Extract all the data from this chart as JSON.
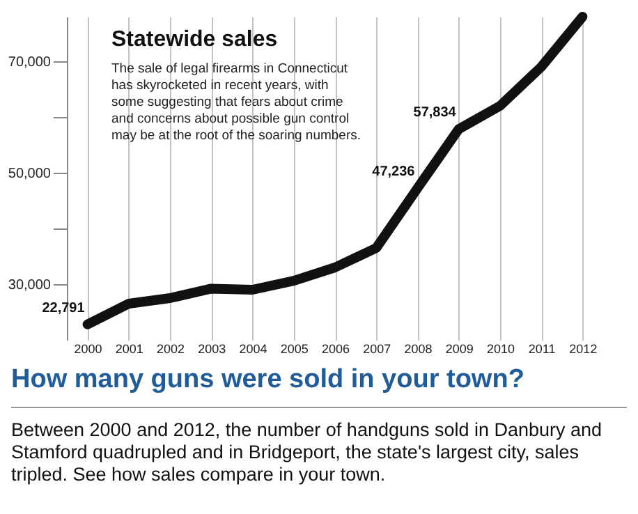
{
  "chart_data": {
    "type": "line",
    "title": "Statewide sales",
    "subtitle": "The sale of legal firearms in Connecticut has skyrocketed in recent years, with some suggesting that fears about crime and concerns about possible gun control may be at the root of the soaring numbers.",
    "categories": [
      "2000",
      "2001",
      "2002",
      "2003",
      "2004",
      "2005",
      "2006",
      "2007",
      "2008",
      "2009",
      "2010",
      "2011",
      "2012"
    ],
    "series": [
      {
        "color": "#111111",
        "values": [
          22791,
          26500,
          27500,
          29200,
          29000,
          30600,
          33000,
          36500,
          47236,
          57834,
          62000,
          69000,
          78000
        ]
      }
    ],
    "value_labels": [
      "22,791",
      null,
      null,
      null,
      null,
      null,
      null,
      null,
      "47,236",
      "57,834",
      null,
      null,
      null
    ],
    "ylim": [
      20000,
      78000
    ],
    "yticks": [
      {
        "value": 30000,
        "label": "30,000"
      },
      {
        "value": 40000,
        "label": null
      },
      {
        "value": 50000,
        "label": "50,000"
      },
      {
        "value": 60000,
        "label": null
      },
      {
        "value": 70000,
        "label": "70,000"
      }
    ],
    "grid": "x",
    "legend": false,
    "annotations": [
      "How many guns were sold in your town?",
      "Between 2000 and 2012, the number of handguns sold in Danbury and Stamford quadrupled and in Bridgeport, the state's largest city, sales tripled. See how sales compare in your town."
    ]
  }
}
